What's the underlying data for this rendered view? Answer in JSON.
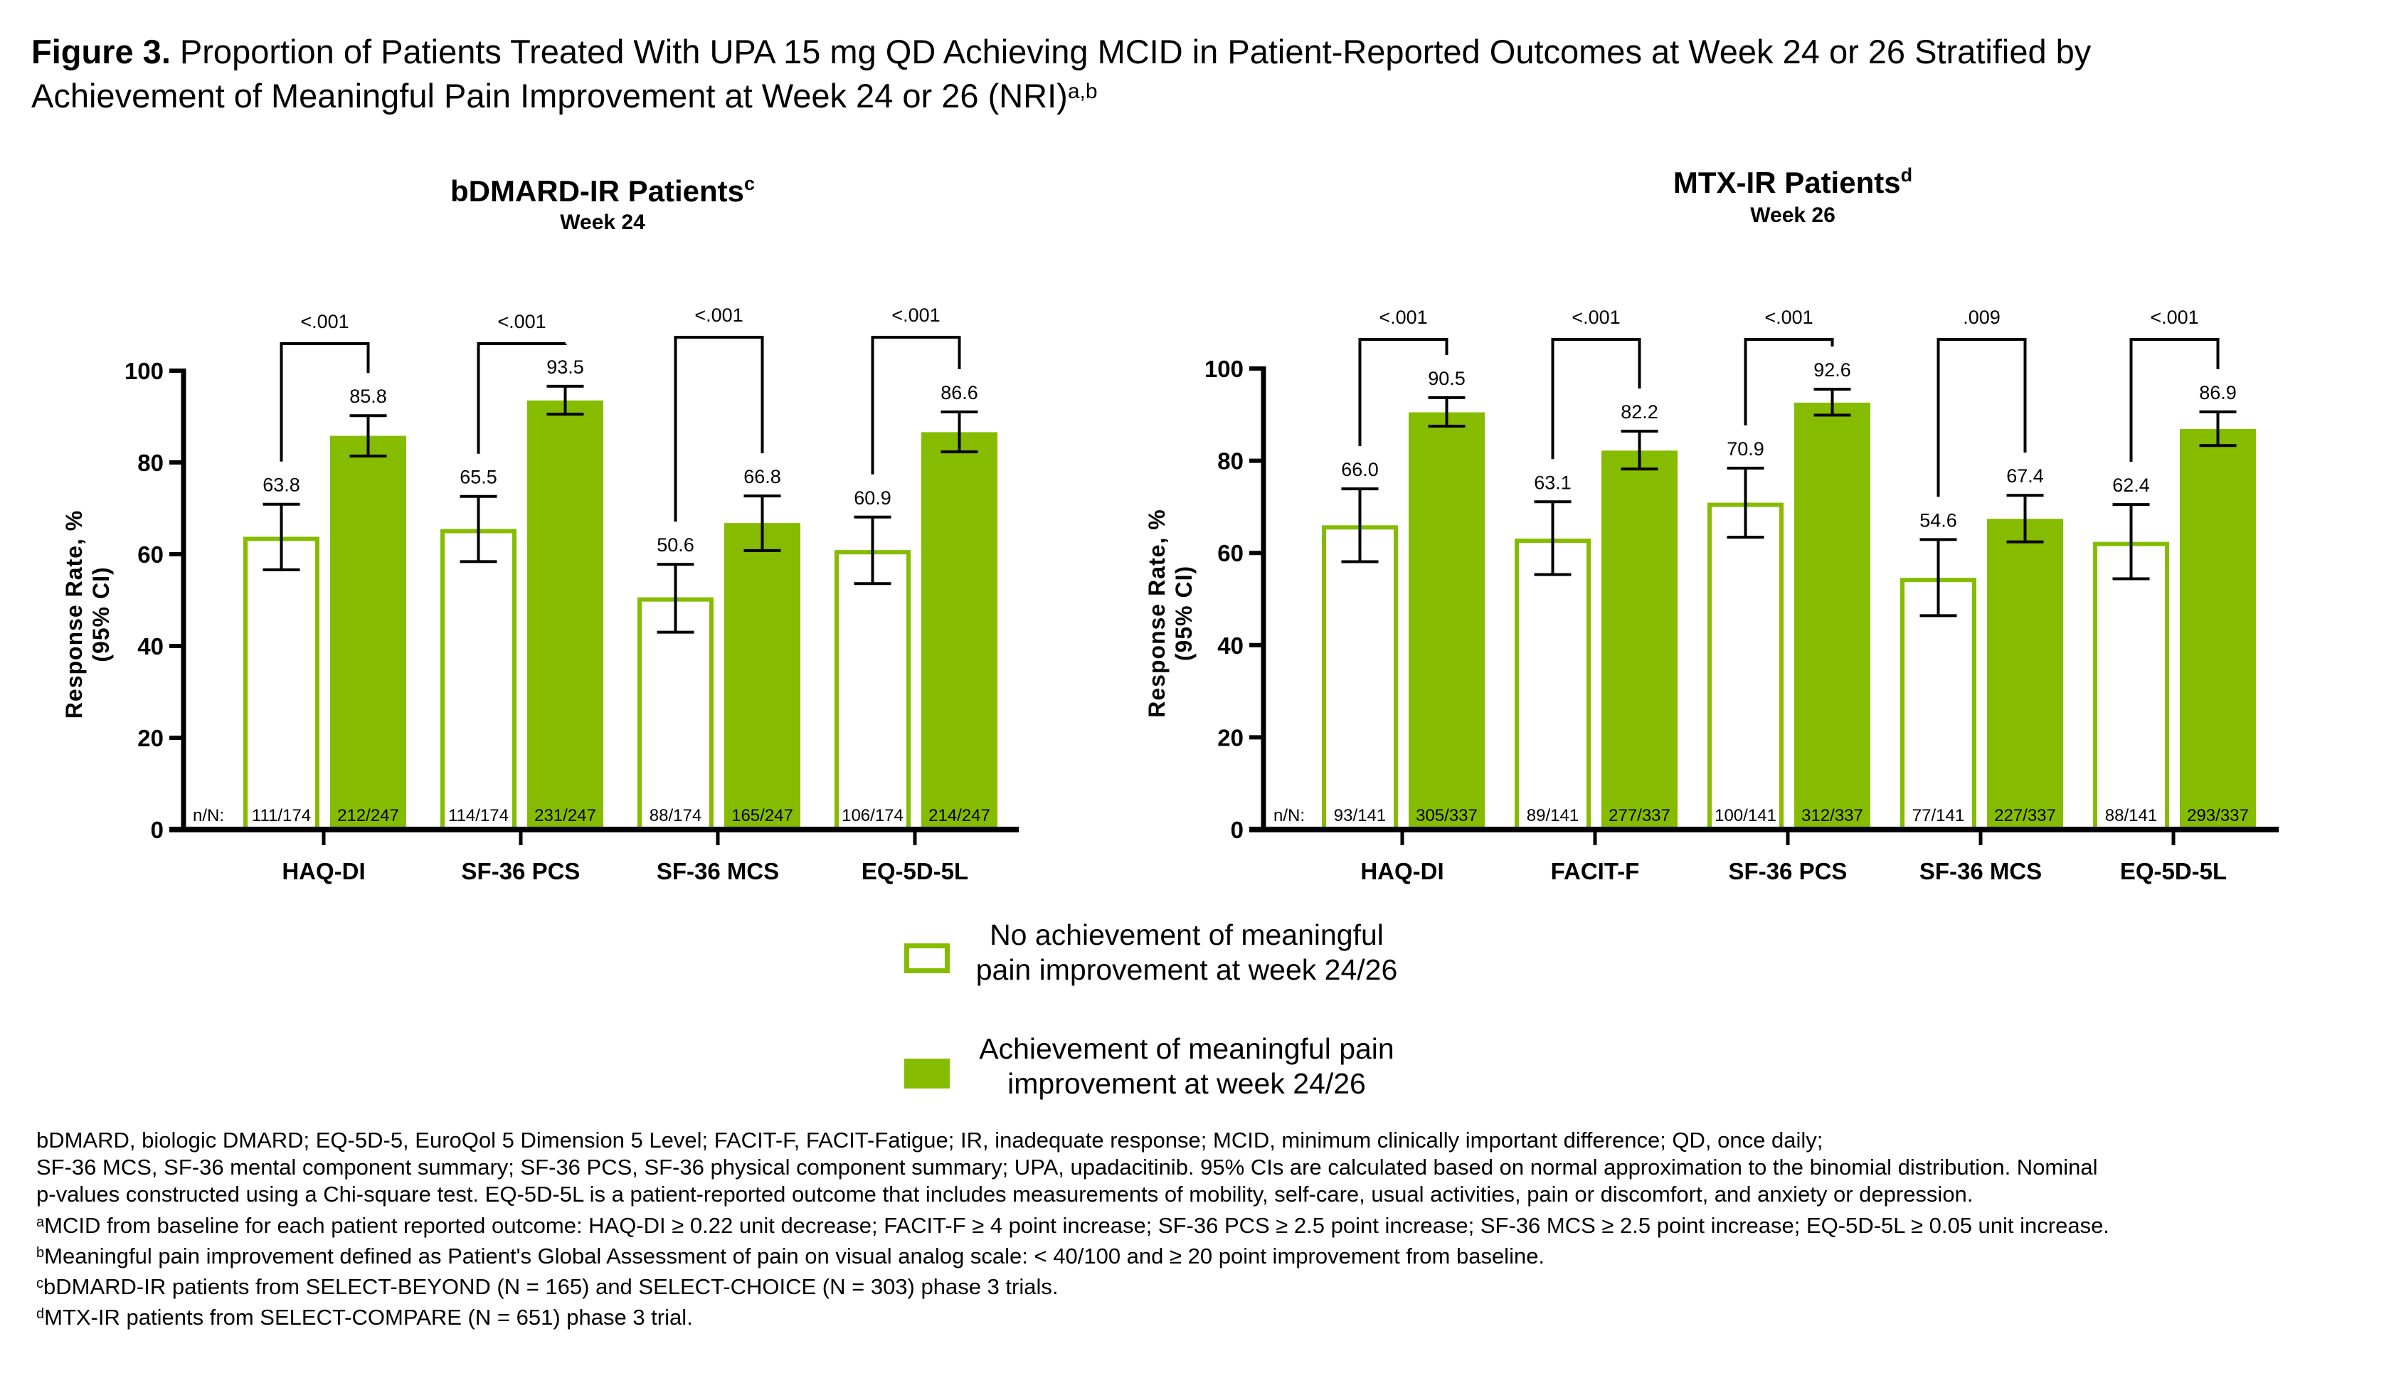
{
  "figure": {
    "title_lead": "Figure 3.",
    "title_line1": " Proportion of Patients Treated With UPA 15 mg QD Achieving MCID in Patient-Reported Outcomes at Week 24 or 26 Stratified by",
    "title_line2": "Achievement of Meaningful Pain Improvement at Week 24 or 26 (NRI)",
    "title_sup": "a,b"
  },
  "colors": {
    "green": "#86bc00",
    "axis": "#000000"
  },
  "legend": {
    "items": [
      {
        "label_line1": "No achievement of meaningful",
        "label_line2": "pain improvement at week 24/26",
        "style": "open"
      },
      {
        "label_line1": "Achievement of meaningful pain",
        "label_line2": "improvement at week 24/26",
        "style": "filled"
      }
    ]
  },
  "chart_data": [
    {
      "type": "bar",
      "title": "bDMARD-IR Patients",
      "title_sup": "c",
      "subtitle": "Week 24",
      "ylabel_line1": "Response Rate, %",
      "ylabel_line2": "(95% CI)",
      "xlabel": "",
      "ylim": [
        0,
        100
      ],
      "yticks": [
        0,
        20,
        40,
        60,
        80,
        100
      ],
      "grid": false,
      "nN_label": "n/N:",
      "categories": [
        "HAQ-DI",
        "SF-36 PCS",
        "SF-36 MCS",
        "EQ-5D-5L"
      ],
      "series": [
        {
          "name": "No achievement of meaningful pain improvement at week 24/26",
          "style": "open",
          "values": [
            63.8,
            65.5,
            50.6,
            60.9
          ],
          "labels": [
            "63.8",
            "65.5",
            "50.6",
            "60.9"
          ],
          "ci_low": [
            56.6,
            58.4,
            43.0,
            53.6
          ],
          "ci_high": [
            70.9,
            72.6,
            57.8,
            68.1
          ],
          "nN": [
            "111/174",
            "114/174",
            "88/174",
            "106/174"
          ]
        },
        {
          "name": "Achievement of meaningful pain improvement at week 24/26",
          "style": "filled",
          "values": [
            85.8,
            93.5,
            66.8,
            86.6
          ],
          "labels": [
            "85.8",
            "93.5",
            "66.8",
            "86.6"
          ],
          "ci_low": [
            81.4,
            90.5,
            60.8,
            82.3
          ],
          "ci_high": [
            90.2,
            96.6,
            72.7,
            91.0
          ],
          "nN": [
            "212/247",
            "231/247",
            "165/247",
            "214/247"
          ]
        }
      ],
      "p_values": [
        "<.001",
        "<.001",
        "<.001",
        "<.001"
      ]
    },
    {
      "type": "bar",
      "title": "MTX-IR Patients",
      "title_sup": "d",
      "subtitle": "Week 26",
      "ylabel_line1": "Response Rate, %",
      "ylabel_line2": "(95% CI)",
      "xlabel": "",
      "ylim": [
        0,
        100
      ],
      "yticks": [
        0,
        20,
        40,
        60,
        80,
        100
      ],
      "grid": false,
      "nN_label": "n/N:",
      "categories": [
        "HAQ-DI",
        "FACIT-F",
        "SF-36 PCS",
        "SF-36 MCS",
        "EQ-5D-5L"
      ],
      "series": [
        {
          "name": "No achievement of meaningful pain improvement at week 24/26",
          "style": "open",
          "values": [
            66.0,
            63.1,
            70.9,
            54.6,
            62.4
          ],
          "labels": [
            "66.0",
            "63.1",
            "70.9",
            "54.6",
            "62.4"
          ],
          "ci_low": [
            58.1,
            55.3,
            63.4,
            46.4,
            54.4
          ],
          "ci_high": [
            73.9,
            71.1,
            78.4,
            62.9,
            70.5
          ],
          "nN": [
            "93/141",
            "89/141",
            "100/141",
            "77/141",
            "88/141"
          ]
        },
        {
          "name": "Achievement of meaningful pain improvement at week 24/26",
          "style": "filled",
          "values": [
            90.5,
            82.2,
            92.6,
            67.4,
            86.9
          ],
          "labels": [
            "90.5",
            "82.2",
            "92.6",
            "67.4",
            "86.9"
          ],
          "ci_low": [
            87.5,
            78.2,
            89.9,
            62.4,
            83.3
          ],
          "ci_high": [
            93.7,
            86.4,
            95.5,
            72.5,
            90.6
          ],
          "nN": [
            "305/337",
            "277/337",
            "312/337",
            "227/337",
            "293/337"
          ]
        }
      ],
      "p_values": [
        "<.001",
        "<.001",
        "<.001",
        ".009",
        "<.001"
      ]
    }
  ],
  "footnotes": {
    "abbrev_line1": "bDMARD, biologic DMARD; EQ-5D-5, EuroQol 5 Dimension 5 Level; FACIT-F, FACIT-Fatigue; IR, inadequate response; MCID, minimum clinically important difference; QD, once daily;",
    "abbrev_line2": "SF-36 MCS, SF-36 mental component summary; SF-36 PCS, SF-36 physical component summary; UPA, upadacitinib. 95% CIs are calculated based on normal approximation to the binomial distribution. Nominal",
    "abbrev_line3": "p-values constructed using a Chi-square test. EQ-5D-5L is a patient-reported outcome that includes measurements of mobility, self-care, usual activities, pain or discomfort, and anxiety or depression.",
    "notes": [
      {
        "mark": "a",
        "text": "MCID from baseline for each patient reported outcome: HAQ-DI ≥ 0.22 unit decrease; FACIT-F ≥ 4 point increase; SF-36 PCS ≥ 2.5 point increase; SF-36 MCS ≥ 2.5 point increase; EQ-5D-5L ≥ 0.05 unit increase."
      },
      {
        "mark": "b",
        "text": "Meaningful pain improvement defined as Patient's Global Assessment of pain on visual analog scale: < 40/100 and ≥ 20 point improvement from baseline."
      },
      {
        "mark": "c",
        "text": "bDMARD-IR patients from SELECT-BEYOND (N = 165) and SELECT-CHOICE (N = 303) phase 3 trials."
      },
      {
        "mark": "d",
        "text": "MTX-IR patients from SELECT-COMPARE (N = 651) phase 3 trial."
      }
    ]
  }
}
